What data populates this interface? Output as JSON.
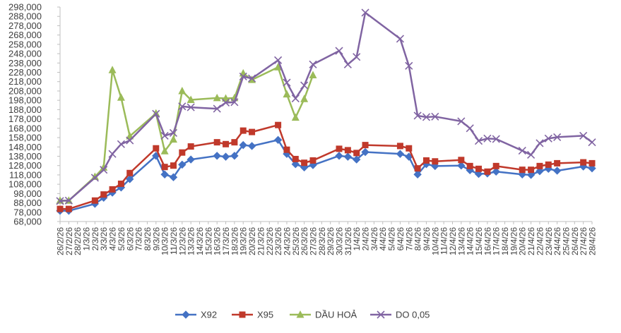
{
  "colors": {
    "X92": "#4472C4",
    "X95": "#C0392B",
    "DAU_HOA": "#9BBB59",
    "DO_005": "#8064A2",
    "axis": "#BFBFBF",
    "text": "#404040"
  },
  "chart_data": {
    "type": "line",
    "title": "",
    "xlabel": "",
    "ylabel": "",
    "ylim": [
      68000,
      298000
    ],
    "ytick_step": 10000,
    "yticks": [
      "68,000",
      "78,000",
      "88,000",
      "98,000",
      "108,000",
      "118,000",
      "128,000",
      "138,000",
      "148,000",
      "158,000",
      "168,000",
      "178,000",
      "188,000",
      "198,000",
      "208,000",
      "218,000",
      "228,000",
      "238,000",
      "248,000",
      "258,000",
      "268,000",
      "278,000",
      "288,000",
      "298,000"
    ],
    "grid": false,
    "legend_position": "bottom",
    "x_is_date": true,
    "date_ticks": [
      "26/2/26",
      "27/2/26",
      "28/2/26",
      "1/3/26",
      "2/3/26",
      "3/3/26",
      "4/3/26",
      "5/3/26",
      "6/3/26",
      "7/3/26",
      "8/3/26",
      "9/3/26",
      "10/3/26",
      "11/3/26",
      "12/3/26",
      "13/3/26",
      "14/3/26",
      "15/3/26",
      "16/3/26",
      "17/3/26",
      "18/3/26",
      "19/3/26",
      "20/3/26",
      "21/3/26",
      "22/3/26",
      "23/3/26",
      "24/3/26",
      "25/3/26",
      "26/3/26",
      "27/3/26",
      "28/3/26",
      "29/3/26",
      "30/3/26",
      "31/3/26",
      "1/4/26",
      "2/4/26",
      "3/4/26",
      "4/4/26",
      "5/4/26",
      "6/4/26",
      "7/4/26",
      "8/4/26",
      "9/4/26",
      "10/4/26",
      "11/4/26",
      "12/4/26",
      "13/4/26",
      "14/4/26",
      "15/4/26",
      "16/4/26",
      "17/4/26",
      "18/4/26",
      "19/4/26",
      "20/4/26",
      "21/4/26",
      "22/4/26",
      "23/4/26",
      "24/4/26",
      "25/4/26",
      "26/4/26",
      "27/4/26",
      "28/4/26"
    ],
    "series": [
      {
        "name": "X92",
        "color_key": "X92",
        "marker": "diamond",
        "points": [
          [
            "26/2/26",
            79500
          ],
          [
            "27/2/26",
            79500
          ],
          [
            "2/3/26",
            87000
          ],
          [
            "3/3/26",
            93500
          ],
          [
            "4/3/26",
            99000
          ],
          [
            "5/3/26",
            104500
          ],
          [
            "6/3/26",
            113500
          ],
          [
            "9/3/26",
            138500
          ],
          [
            "10/3/26",
            118500
          ],
          [
            "11/3/26",
            115500
          ],
          [
            "12/3/26",
            129000
          ],
          [
            "13/3/26",
            134500
          ],
          [
            "16/3/26",
            138500
          ],
          [
            "17/3/26",
            137500
          ],
          [
            "18/3/26",
            138500
          ],
          [
            "19/3/26",
            150000
          ],
          [
            "20/3/26",
            149000
          ],
          [
            "23/3/26",
            155500
          ],
          [
            "24/3/26",
            140500
          ],
          [
            "25/3/26",
            129500
          ],
          [
            "26/3/26",
            126000
          ],
          [
            "27/3/26",
            128500
          ],
          [
            "30/3/26",
            138500
          ],
          [
            "31/3/26",
            137500
          ],
          [
            "1/4/26",
            134500
          ],
          [
            "2/4/26",
            142500
          ],
          [
            "6/4/26",
            140500
          ],
          [
            "7/4/26",
            137500
          ],
          [
            "8/4/26",
            118500
          ],
          [
            "9/4/26",
            129500
          ],
          [
            "10/4/26",
            127500
          ],
          [
            "13/4/26",
            128000
          ],
          [
            "14/4/26",
            123000
          ],
          [
            "15/4/26",
            119000
          ],
          [
            "16/4/26",
            119500
          ],
          [
            "17/4/26",
            121500
          ],
          [
            "20/4/26",
            118500
          ],
          [
            "21/4/26",
            118000
          ],
          [
            "22/4/26",
            122000
          ],
          [
            "23/4/26",
            124500
          ],
          [
            "24/4/26",
            122500
          ],
          [
            "27/4/26",
            127000
          ],
          [
            "28/4/26",
            125000
          ]
        ]
      },
      {
        "name": "X95",
        "color_key": "X95",
        "marker": "square",
        "points": [
          [
            "26/2/26",
            81500
          ],
          [
            "27/2/26",
            81500
          ],
          [
            "2/3/26",
            90500
          ],
          [
            "3/3/26",
            97000
          ],
          [
            "4/3/26",
            102500
          ],
          [
            "5/3/26",
            108500
          ],
          [
            "6/3/26",
            120000
          ],
          [
            "9/3/26",
            146500
          ],
          [
            "10/3/26",
            126500
          ],
          [
            "11/3/26",
            128000
          ],
          [
            "12/3/26",
            142000
          ],
          [
            "13/3/26",
            148500
          ],
          [
            "16/3/26",
            153000
          ],
          [
            "17/3/26",
            151000
          ],
          [
            "18/3/26",
            153000
          ],
          [
            "19/3/26",
            165500
          ],
          [
            "20/3/26",
            164000
          ],
          [
            "23/3/26",
            171500
          ],
          [
            "24/3/26",
            145000
          ],
          [
            "25/3/26",
            135000
          ],
          [
            "26/3/26",
            131000
          ],
          [
            "27/3/26",
            133500
          ],
          [
            "30/3/26",
            146000
          ],
          [
            "31/3/26",
            144500
          ],
          [
            "1/4/26",
            141500
          ],
          [
            "2/4/26",
            150000
          ],
          [
            "6/4/26",
            149000
          ],
          [
            "7/4/26",
            146500
          ],
          [
            "8/4/26",
            125000
          ],
          [
            "9/4/26",
            133500
          ],
          [
            "10/4/26",
            132500
          ],
          [
            "13/4/26",
            134000
          ],
          [
            "14/4/26",
            127500
          ],
          [
            "15/4/26",
            124500
          ],
          [
            "16/4/26",
            121500
          ],
          [
            "17/4/26",
            127500
          ],
          [
            "20/4/26",
            123500
          ],
          [
            "21/4/26",
            123500
          ],
          [
            "22/4/26",
            127500
          ],
          [
            "23/4/26",
            129000
          ],
          [
            "24/4/26",
            130500
          ],
          [
            "27/4/26",
            131500
          ],
          [
            "28/4/26",
            130500
          ]
        ]
      },
      {
        "name": "DẦU HOẢ",
        "color_key": "DAU_HOA",
        "marker": "triangle",
        "points": [
          [
            "26/2/26",
            90500
          ],
          [
            "27/2/26",
            90500
          ],
          [
            "2/3/26",
            116000
          ],
          [
            "3/3/26",
            126000
          ],
          [
            "4/3/26",
            230500
          ],
          [
            "5/3/26",
            201000
          ],
          [
            "6/3/26",
            159500
          ],
          [
            "9/3/26",
            184000
          ],
          [
            "10/3/26",
            143500
          ],
          [
            "11/3/26",
            156000
          ],
          [
            "12/3/26",
            208000
          ],
          [
            "13/3/26",
            198500
          ],
          [
            "16/3/26",
            200500
          ],
          [
            "17/3/26",
            200000
          ],
          [
            "18/3/26",
            200500
          ],
          [
            "19/3/26",
            227000
          ],
          [
            "20/3/26",
            220000
          ],
          [
            "23/3/26",
            233500
          ],
          [
            "24/3/26",
            204500
          ],
          [
            "25/3/26",
            179500
          ],
          [
            "26/3/26",
            199500
          ],
          [
            "27/3/26",
            225000
          ]
        ]
      },
      {
        "name": "DO 0,05",
        "color_key": "DO_005",
        "marker": "x",
        "points": [
          [
            "26/2/26",
            90000
          ],
          [
            "27/2/26",
            90500
          ],
          [
            "2/3/26",
            115000
          ],
          [
            "3/3/26",
            123500
          ],
          [
            "4/3/26",
            140500
          ],
          [
            "5/3/26",
            151000
          ],
          [
            "6/3/26",
            155000
          ],
          [
            "9/3/26",
            183500
          ],
          [
            "10/3/26",
            160000
          ],
          [
            "11/3/26",
            163000
          ],
          [
            "12/3/26",
            191500
          ],
          [
            "13/3/26",
            190500
          ],
          [
            "16/3/26",
            189000
          ],
          [
            "17/3/26",
            195500
          ],
          [
            "18/3/26",
            196000
          ],
          [
            "19/3/26",
            223500
          ],
          [
            "20/3/26",
            221500
          ],
          [
            "23/3/26",
            241000
          ],
          [
            "24/3/26",
            217000
          ],
          [
            "25/3/26",
            200000
          ],
          [
            "26/3/26",
            214000
          ],
          [
            "27/3/26",
            236500
          ],
          [
            "30/3/26",
            251000
          ],
          [
            "31/3/26",
            236500
          ],
          [
            "1/4/26",
            244500
          ],
          [
            "2/4/26",
            292000
          ],
          [
            "6/4/26",
            264000
          ],
          [
            "7/4/26",
            235000
          ],
          [
            "8/4/26",
            181500
          ],
          [
            "9/4/26",
            180000
          ],
          [
            "10/4/26",
            180500
          ],
          [
            "13/4/26",
            175500
          ],
          [
            "14/4/26",
            168000
          ],
          [
            "15/4/26",
            154500
          ],
          [
            "16/4/26",
            157000
          ],
          [
            "17/4/26",
            156500
          ],
          [
            "20/4/26",
            144000
          ],
          [
            "21/4/26",
            139500
          ],
          [
            "22/4/26",
            152000
          ],
          [
            "23/4/26",
            157000
          ],
          [
            "24/4/26",
            158500
          ],
          [
            "27/4/26",
            160000
          ],
          [
            "28/4/26",
            153000
          ]
        ]
      }
    ]
  }
}
